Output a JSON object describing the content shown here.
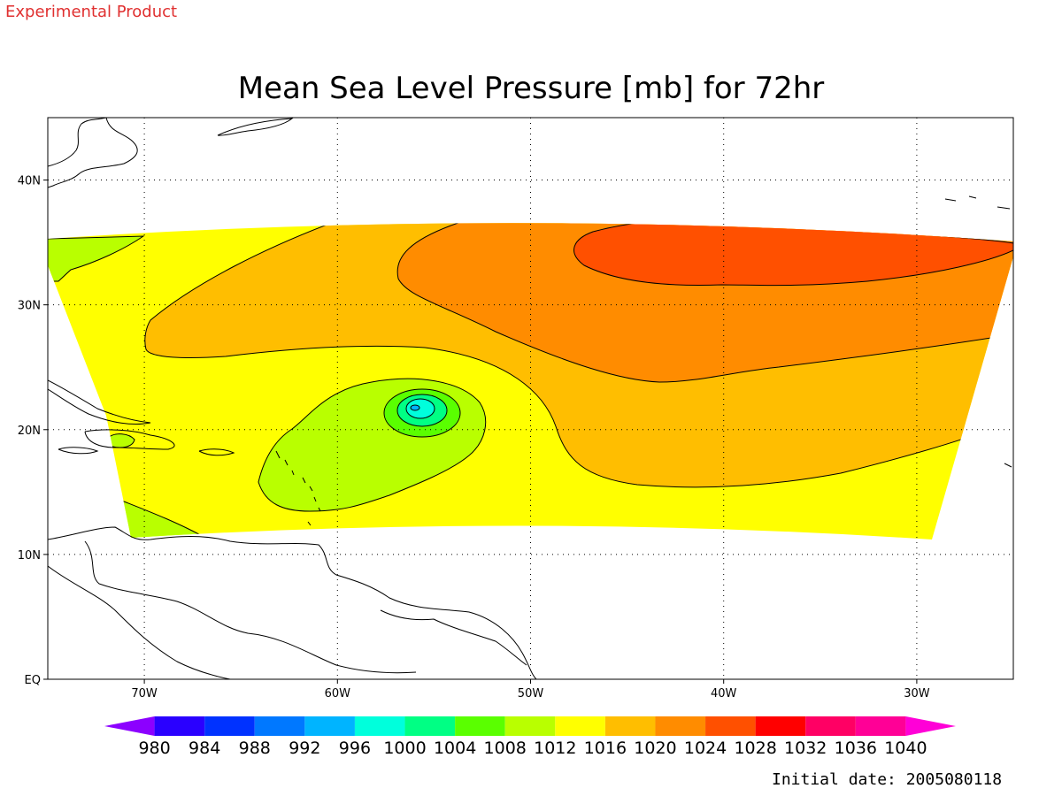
{
  "header": {
    "experimental_label": "Experimental Product",
    "title": "Mean Sea Level Pressure [mb] for 72hr",
    "initial_date": "Initial date: 2005080118"
  },
  "map": {
    "projection": "latitude-longitude",
    "lon_range": [
      -75,
      -25
    ],
    "lat_range": [
      0,
      45
    ],
    "gridlines": "dotted",
    "y_ticks": [
      {
        "lat": 40,
        "label": "40N"
      },
      {
        "lat": 30,
        "label": "30N"
      },
      {
        "lat": 20,
        "label": "20N"
      },
      {
        "lat": 10,
        "label": "10N"
      },
      {
        "lat": 0,
        "label": "EQ"
      }
    ],
    "x_ticks": [
      {
        "lon": -70,
        "label": "70W"
      },
      {
        "lon": -60,
        "label": "60W"
      },
      {
        "lon": -50,
        "label": "50W"
      },
      {
        "lon": -40,
        "label": "40W"
      },
      {
        "lon": -30,
        "label": "30W"
      }
    ],
    "features": {
      "low_pressure_center": {
        "lon": -56,
        "lat": 21.8,
        "min_mb": 996
      },
      "high_pressure_region": {
        "lon": -40,
        "lat": 33.5,
        "range_mb": "1024-1028"
      }
    }
  },
  "colorbar": {
    "levels": [
      "980",
      "984",
      "988",
      "992",
      "996",
      "1000",
      "1004",
      "1008",
      "1012",
      "1016",
      "1020",
      "1024",
      "1028",
      "1032",
      "1036",
      "1040"
    ],
    "colors": [
      "#8c00ff",
      "#2a00ff",
      "#0032ff",
      "#0078ff",
      "#00b4ff",
      "#00ffdc",
      "#00ff84",
      "#5aff00",
      "#b9ff00",
      "#ffff00",
      "#ffbe00",
      "#ff8c00",
      "#ff5000",
      "#ff0000",
      "#ff0064",
      "#ff0096",
      "#ff00d7"
    ]
  }
}
